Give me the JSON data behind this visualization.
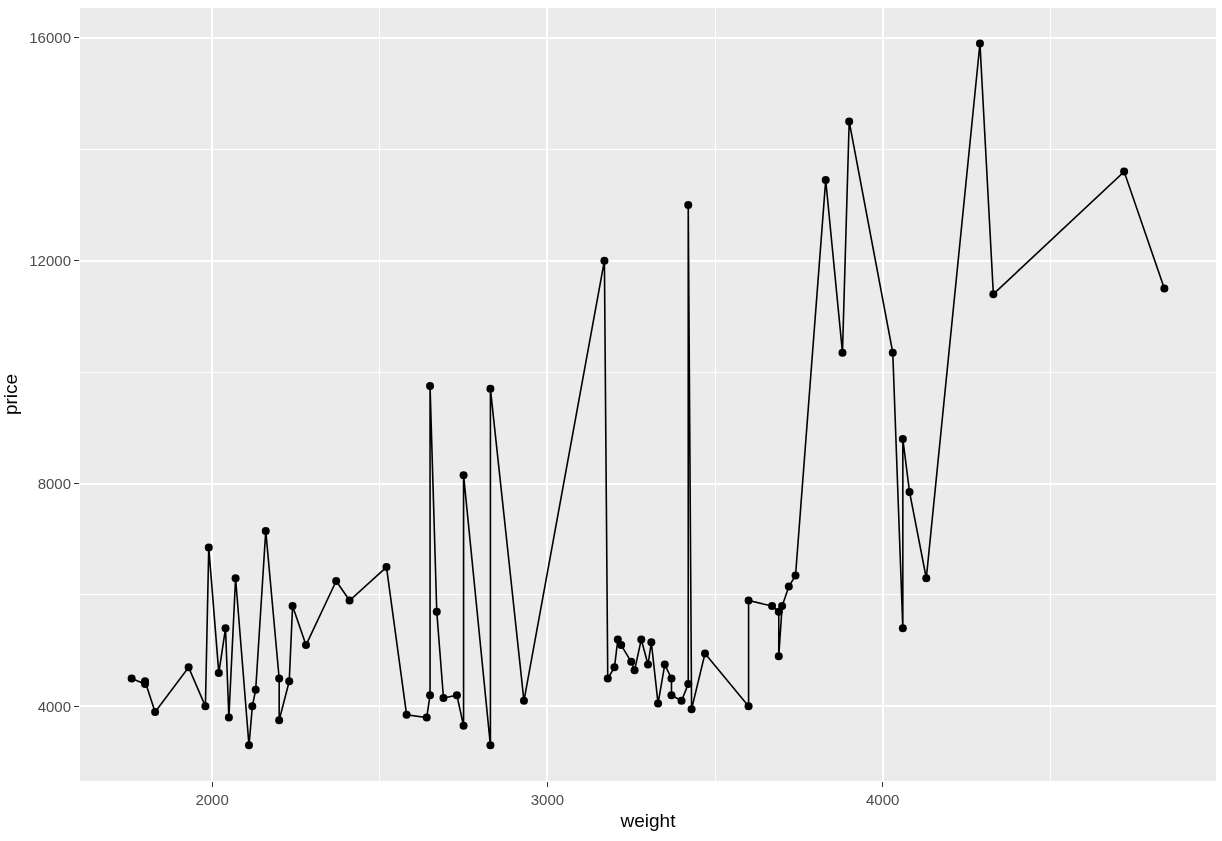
{
  "chart_data": {
    "type": "line",
    "xlabel": "weight",
    "ylabel": "price",
    "marker": "circle",
    "line_style": "solid",
    "grid": true,
    "xlim": [
      1606,
      4994
    ],
    "ylim": [
      2660,
      16537
    ],
    "xticks": [
      2000,
      {
        "value": 2500,
        "label": null
      },
      3000,
      {
        "value": 3500,
        "label": null
      },
      4000,
      {
        "value": 4500,
        "label": null
      }
    ],
    "yticks": [
      4000,
      {
        "value": 6000,
        "label": null
      },
      8000,
      {
        "value": 10000,
        "label": null
      },
      12000,
      {
        "value": 14000,
        "label": null
      },
      16000
    ],
    "series": [
      {
        "color": "#000000",
        "x": [
          1760,
          1800,
          1800,
          1830,
          1930,
          1980,
          1990,
          2020,
          2040,
          2050,
          2070,
          2110,
          2120,
          2130,
          2160,
          2200,
          2200,
          2230,
          2240,
          2280,
          2370,
          2410,
          2520,
          2580,
          2640,
          2650,
          2650,
          2670,
          2690,
          2730,
          2750,
          2750,
          2830,
          2830,
          2930,
          3170,
          3180,
          3200,
          3210,
          3220,
          3250,
          3260,
          3280,
          3300,
          3310,
          3330,
          3350,
          3370,
          3370,
          3400,
          3420,
          3420,
          3430,
          3470,
          3600,
          3600,
          3670,
          3690,
          3690,
          3700,
          3720,
          3740,
          3830,
          3880,
          3900,
          4030,
          4060,
          4060,
          4080,
          4130,
          4290,
          4330,
          4720,
          4840
        ],
        "values": [
          4500,
          4400,
          4450,
          3900,
          4700,
          4000,
          6850,
          4600,
          5400,
          3800,
          6300,
          3300,
          4000,
          4300,
          7150,
          4500,
          3750,
          4450,
          5800,
          5100,
          6250,
          5900,
          6500,
          3850,
          3800,
          4200,
          9750,
          5700,
          4150,
          4200,
          3650,
          8150,
          3300,
          9700,
          4100,
          12000,
          4500,
          4700,
          5200,
          5100,
          4800,
          4650,
          5200,
          4750,
          5150,
          4050,
          4750,
          4500,
          4200,
          4100,
          4400,
          13000,
          3950,
          4950,
          4000,
          5900,
          5800,
          5700,
          4900,
          5800,
          6150,
          6350,
          13450,
          10350,
          14500,
          10350,
          5400,
          8800,
          7850,
          6300,
          15900,
          11400,
          13600,
          11500
        ]
      }
    ]
  }
}
